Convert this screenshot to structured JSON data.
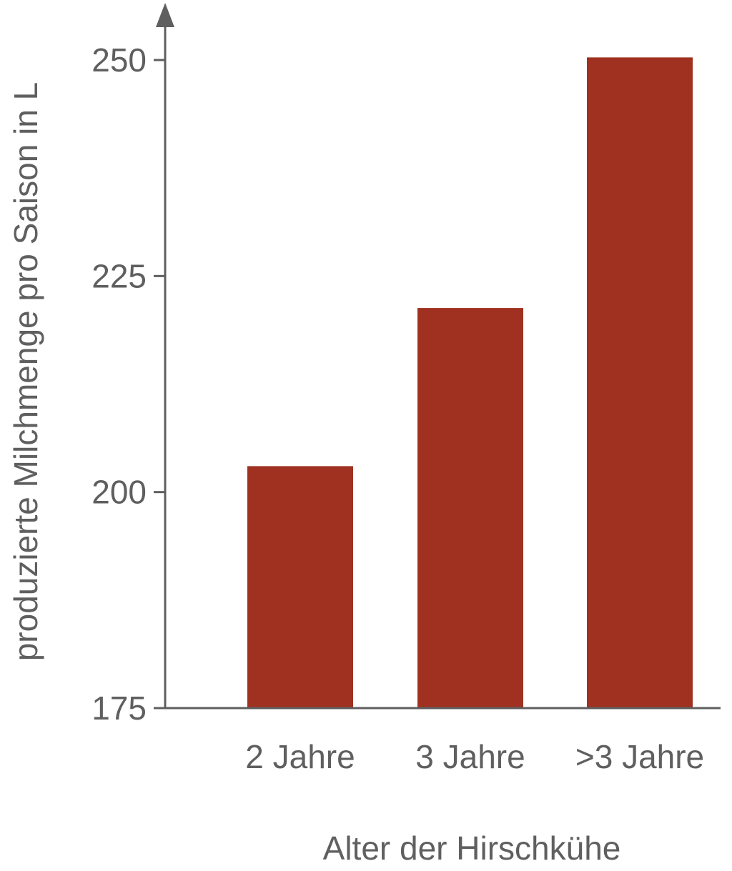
{
  "chart_data": {
    "type": "bar",
    "categories": [
      "2 Jahre",
      "3 Jahre",
      ">3 Jahre"
    ],
    "values": [
      203,
      221.3,
      250.3
    ],
    "xlabel": "Alter der Hirschkühe",
    "ylabel": "produzierte Milchmenge pro Saison in L",
    "ylim": [
      175,
      250
    ],
    "yticks": [
      175,
      200,
      225,
      250
    ],
    "grid": false,
    "legend": "none"
  },
  "colors": {
    "bar": "#a0301f",
    "axis": "#5f5f5f",
    "text": "#5f5f5f"
  }
}
